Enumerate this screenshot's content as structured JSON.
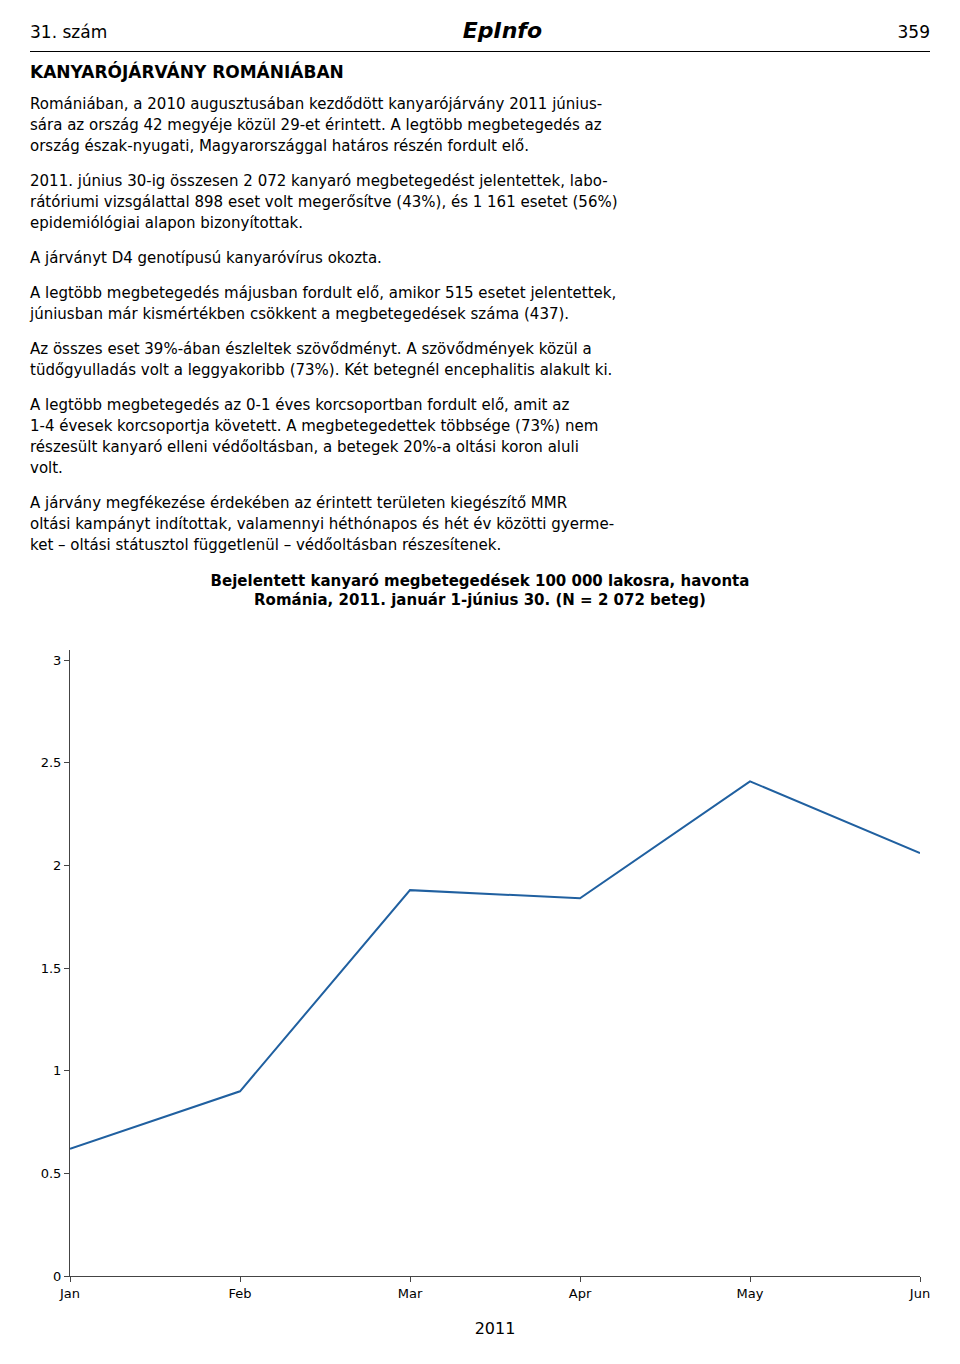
{
  "chart_data": {
    "type": "line",
    "title": "Bejelentett kanyaró megbetegedések 100 000 lakosra, havonta",
    "subtitle": "Románia, 2011. január 1-június 30. (N = 2 072 beteg)",
    "x_label": "2011",
    "categories": [
      "Jan",
      "Feb",
      "Mar",
      "Apr",
      "May",
      "Jun"
    ],
    "values": [
      0.62,
      0.9,
      1.88,
      1.84,
      2.41,
      2.06
    ],
    "color": "#2060a0",
    "ylim": [
      0,
      3.05
    ],
    "yticks": [
      0,
      0.5,
      1,
      1.5,
      2,
      2.5,
      3
    ],
    "grid": false,
    "annotations": [
      "31. szám",
      "EpInfo",
      "359",
      "KANYARÓJÁRVÁNY ROMÁNIÁBAN",
      "Romániában, a 2010 augusztusában kezdődött kanyarójárvány 2011 június-\nsára az ország 42 megyéje közül 29-et érintett. A legtöbb megbetegedés az\nország észak-nyugati, Magyarországgal határos részén fordult elő.",
      "2011. június 30-ig összesen 2 072 kanyaró megbetegedést jelentettek, labo-\nrátóriumi vizsgálattal 898 eset volt megerősítve (43%), és 1 161 esetet (56%)\nepidemiólógiai alapon bizonyítottak.",
      "A járványt D4 genotípusú kanyaróvírus okozta.",
      "A legtöbb megbetegedés májusban fordult elő, amikor 515 esetet jelentettek,\njúniusban már kismértékben csökkent a megbetegedések száma (437).",
      "Az összes eset 39%-ában észleltek szövődményt. A szövődmények közül a\ntüdőgyulladás volt a leggyakoribb (73%). Két betegnél encephalitis alakult ki.",
      "A legtöbb megbetegedés az 0-1 éves korcsoportban fordult elő, amit az\n1-4 évesek korcsoportja követett. A megbetegedettek többsége (73%) nem\nrészesült kanyaró elleni védőoltásban, a betegek 20%-a oltási koron aluli\nvolt.",
      "A járvány megfékezése érdekében az érintett területen kiegészítő MMR\noltási kampányt indítottak, valamennyi héthónapos és hét év közötti gyerme-\nket – oltási státusztol függetlenül – védőoltásban részesítenek."
    ]
  }
}
